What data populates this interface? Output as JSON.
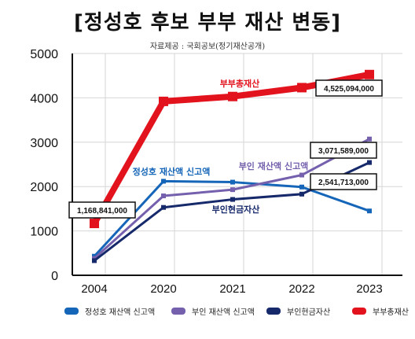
{
  "header": {
    "title": "[정성호 후보 부부 재산 변동]",
    "source": "자료제공 : 국회공보(정기재산공개)"
  },
  "chart_data": {
    "type": "line",
    "categories": [
      "2004",
      "2020",
      "2021",
      "2022",
      "2023"
    ],
    "ylim": [
      0,
      5000
    ],
    "yticks": [
      0,
      1000,
      2000,
      3000,
      4000,
      5000
    ],
    "grid": true,
    "series": [
      {
        "name": "정성호 재산액 신고액",
        "color": "#1565b8",
        "values": [
          430,
          2120,
          2100,
          1990,
          1450
        ],
        "marker": "square"
      },
      {
        "name": "부인 재산액 신고액",
        "color": "#7460ad",
        "values": [
          380,
          1790,
          1930,
          2260,
          3072
        ],
        "marker": "square"
      },
      {
        "name": "부인현금자산",
        "color": "#16296b",
        "values": [
          330,
          1530,
          1710,
          1830,
          2542
        ],
        "marker": "square"
      },
      {
        "name": "부부총재산",
        "color": "#e3131e",
        "values": [
          1169,
          3920,
          4030,
          4230,
          4525
        ],
        "marker": "square"
      }
    ],
    "line_labels": [
      {
        "series": 3,
        "text": "부부총재산",
        "color": "#e3131e"
      },
      {
        "series": 0,
        "text": "정성호 재산액 신고액",
        "color": "#1565b8"
      },
      {
        "series": 1,
        "text": "부인 재산액 신고액",
        "color": "#7460ad"
      },
      {
        "series": 2,
        "text": "부인현금자산",
        "color": "#16296b"
      }
    ],
    "value_boxes": [
      {
        "text": "1,168,841,000"
      },
      {
        "text": "4,525,094,000"
      },
      {
        "text": "3,071,589,000"
      },
      {
        "text": "2,541,713,000"
      }
    ]
  }
}
